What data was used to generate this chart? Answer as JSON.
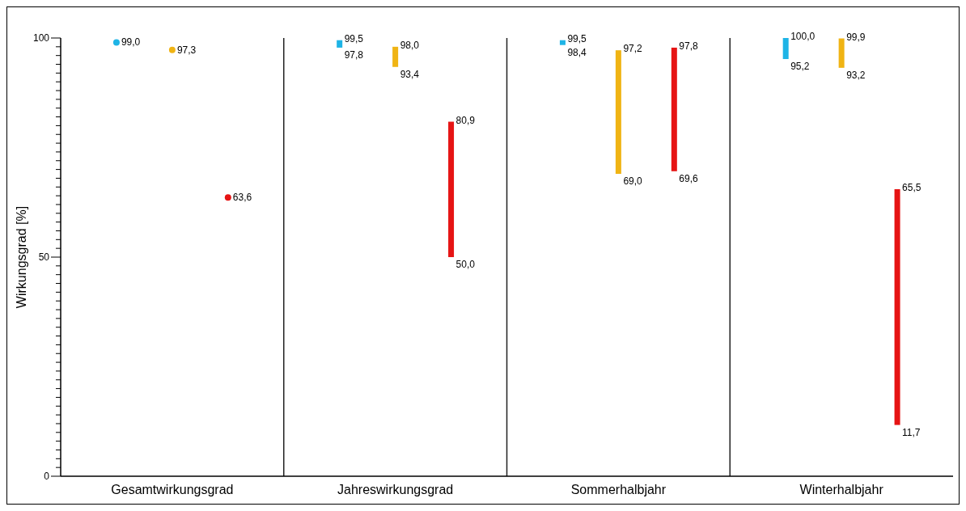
{
  "chart_data": {
    "type": "bar",
    "ylabel": "Wirkungsgrad [%]",
    "categories": [
      "Gesamtwirkungsgrad",
      "Jahreswirkungsgrad",
      "Sommerhalbjahr",
      "Winterhalbjahr"
    ],
    "ylim": [
      0,
      100
    ],
    "yticks": [
      0,
      {
        "value": 2,
        "label": null
      },
      {
        "value": 4,
        "label": null
      },
      {
        "value": 6,
        "label": null
      },
      {
        "value": 8,
        "label": null
      },
      {
        "value": 10,
        "label": null
      },
      {
        "value": 12,
        "label": null
      },
      {
        "value": 14,
        "label": null
      },
      {
        "value": 16,
        "label": null
      },
      {
        "value": 18,
        "label": null
      },
      {
        "value": 20,
        "label": null
      },
      {
        "value": 22,
        "label": null
      },
      {
        "value": 24,
        "label": null
      },
      {
        "value": 26,
        "label": null
      },
      {
        "value": 28,
        "label": null
      },
      {
        "value": 30,
        "label": null
      },
      {
        "value": 32,
        "label": null
      },
      {
        "value": 34,
        "label": null
      },
      {
        "value": 36,
        "label": null
      },
      {
        "value": 38,
        "label": null
      },
      {
        "value": 40,
        "label": null
      },
      {
        "value": 42,
        "label": null
      },
      {
        "value": 44,
        "label": null
      },
      {
        "value": 46,
        "label": null
      },
      {
        "value": 48,
        "label": null
      },
      50,
      {
        "value": 52,
        "label": null
      },
      {
        "value": 54,
        "label": null
      },
      {
        "value": 56,
        "label": null
      },
      {
        "value": 58,
        "label": null
      },
      {
        "value": 60,
        "label": null
      },
      {
        "value": 62,
        "label": null
      },
      {
        "value": 64,
        "label": null
      },
      {
        "value": 66,
        "label": null
      },
      {
        "value": 68,
        "label": null
      },
      {
        "value": 70,
        "label": null
      },
      {
        "value": 72,
        "label": null
      },
      {
        "value": 74,
        "label": null
      },
      {
        "value": 76,
        "label": null
      },
      {
        "value": 78,
        "label": null
      },
      {
        "value": 80,
        "label": null
      },
      {
        "value": 82,
        "label": null
      },
      {
        "value": 84,
        "label": null
      },
      {
        "value": 86,
        "label": null
      },
      {
        "value": 88,
        "label": null
      },
      {
        "value": 90,
        "label": null
      },
      {
        "value": 92,
        "label": null
      },
      {
        "value": 94,
        "label": null
      },
      {
        "value": 96,
        "label": null
      },
      {
        "value": 98,
        "label": null
      },
      100
    ],
    "grid": false,
    "series": [
      {
        "type": "scatter",
        "color": "#1eb4e6",
        "x": [
          "Gesamtwirkungsgrad"
        ],
        "values": [
          99.0
        ],
        "marker": "circle"
      },
      {
        "type": "scatter",
        "color": "#f0b414",
        "x": [
          "Gesamtwirkungsgrad"
        ],
        "values": [
          97.3
        ],
        "marker": "circle"
      },
      {
        "type": "scatter",
        "color": "#e61414",
        "x": [
          "Gesamtwirkungsgrad"
        ],
        "values": [
          63.6
        ],
        "marker": "circle"
      },
      {
        "color": "#1eb4e6",
        "values": [
          null,
          1.7,
          1.1,
          4.8
        ],
        "base": [
          null,
          97.8,
          98.4,
          95.2
        ]
      },
      {
        "color": "#f0b414",
        "values": [
          null,
          4.6,
          28.2,
          6.7
        ],
        "base": [
          null,
          93.4,
          69.0,
          93.2
        ]
      },
      {
        "color": "#e61414",
        "values": [
          null,
          30.9,
          28.2,
          53.8
        ],
        "base": [
          null,
          50.0,
          69.6,
          11.7
        ]
      }
    ],
    "annotations": [
      "99,0",
      "97,3",
      "63,6",
      "99,5",
      "97,8",
      "98,0",
      "93,4",
      "80,9",
      "50,0",
      "99,5",
      "98,4",
      "97,2",
      "69,0",
      "97,8",
      "69,6",
      "100,0",
      "95,2",
      "99,9",
      "93,2",
      "65,5",
      "11,7"
    ]
  }
}
